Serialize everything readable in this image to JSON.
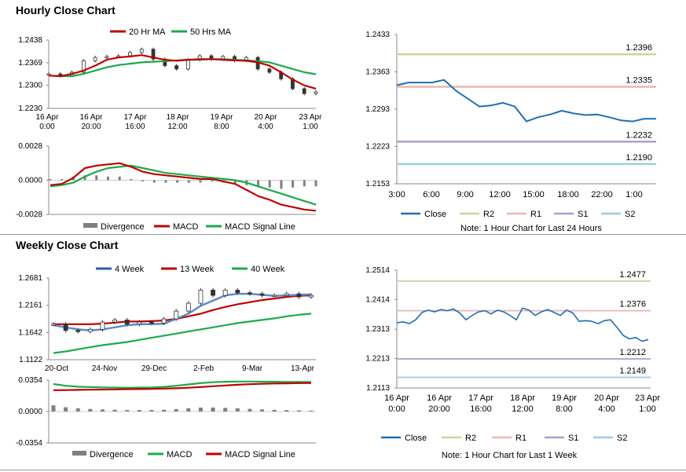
{
  "sections": {
    "hourly_title": "Hourly Close Chart",
    "weekly_title": "Weekly Close Chart"
  },
  "colors": {
    "red": "#c00000",
    "green": "#1aab4b",
    "blue": "#2f5ea8",
    "closeBlue": "#1f6fb2",
    "r2": "#c5d79b",
    "r1": "#eab5b5",
    "s1": "#b09dc8",
    "s2": "#9ccde0",
    "gray": "#808080",
    "candle": "#333333"
  },
  "chart_data": [
    {
      "id": "hourly_price",
      "type": "line",
      "legend": [
        {
          "name": "20 Hr MA",
          "color": "red"
        },
        {
          "name": "50 Hrs MA",
          "color": "green"
        }
      ],
      "yticks": [
        "1.2438",
        "1.2369",
        "1.2300",
        "1.2230"
      ],
      "ylim": [
        1.223,
        1.2438
      ],
      "xticks": [
        {
          "l1": "16 Apr",
          "l2": "0:00"
        },
        {
          "l1": "16 Apr",
          "l2": "20:00"
        },
        {
          "l1": "17 Apr",
          "l2": "16:00"
        },
        {
          "l1": "18 Apr",
          "l2": "12:00"
        },
        {
          "l1": "19 Apr",
          "l2": "8:00"
        },
        {
          "l1": "20 Apr",
          "l2": "4:00"
        },
        {
          "l1": "23 Apr",
          "l2": "1:00"
        }
      ],
      "series": [
        {
          "name": "20 Hr MA",
          "values": [
            1.233,
            1.2328,
            1.2335,
            1.2345,
            1.236,
            1.2378,
            1.2385,
            1.2388,
            1.2392,
            1.2385,
            1.2378,
            1.2375,
            1.2378,
            1.238,
            1.238,
            1.2378,
            1.2376,
            1.2375,
            1.237,
            1.236,
            1.234,
            1.2318,
            1.23,
            1.229
          ]
        },
        {
          "name": "50 Hrs MA",
          "values": [
            1.233,
            1.2328,
            1.2328,
            1.2335,
            1.2345,
            1.2355,
            1.2362,
            1.2366,
            1.237,
            1.2372,
            1.2374,
            1.2376,
            1.2378,
            1.2378,
            1.238,
            1.238,
            1.2378,
            1.2376,
            1.2374,
            1.237,
            1.236,
            1.235,
            1.234,
            1.2334
          ]
        },
        {
          "name": "Close",
          "values": [
            1.2335,
            1.233,
            1.234,
            1.2375,
            1.2385,
            1.2388,
            1.239,
            1.24,
            1.241,
            1.238,
            1.236,
            1.235,
            1.2378,
            1.239,
            1.238,
            1.2388,
            1.2376,
            1.2385,
            1.235,
            1.234,
            1.232,
            1.229,
            1.2275,
            1.228
          ]
        }
      ]
    },
    {
      "id": "hourly_macd",
      "type": "line",
      "legend": [
        {
          "name": "Divergence",
          "color": "gray"
        },
        {
          "name": "MACD",
          "color": "red"
        },
        {
          "name": "MACD Signal Line",
          "color": "green"
        }
      ],
      "yticks": [
        "0.0028",
        "0.0000",
        "-0.0028"
      ],
      "ylim": [
        -0.0028,
        0.0028
      ],
      "series": [
        {
          "name": "MACD",
          "values": [
            -0.0004,
            -0.0003,
            0.0002,
            0.001,
            0.0012,
            0.0013,
            0.0014,
            0.0011,
            0.0007,
            0.0005,
            0.0004,
            0.0003,
            0.0002,
            0.0001,
            0.0001,
            -0.0001,
            -0.0003,
            -0.0008,
            -0.0013,
            -0.0016,
            -0.002,
            -0.0022,
            -0.0024,
            -0.0025
          ]
        },
        {
          "name": "MACD Signal Line",
          "values": [
            -0.0005,
            -0.0004,
            -0.0002,
            0.0003,
            0.0007,
            0.001,
            0.0011,
            0.0012,
            0.001,
            0.0008,
            0.0006,
            0.0005,
            0.0004,
            0.0003,
            0.0002,
            0.0001,
            0.0,
            -0.0002,
            -0.0005,
            -0.0008,
            -0.0011,
            -0.0014,
            -0.0017,
            -0.002
          ]
        },
        {
          "name": "Divergence",
          "values": [
            0.0001,
            0.0001,
            0.0003,
            0.0004,
            0.0004,
            0.0003,
            0.0003,
            0.0001,
            -0.0001,
            -0.0002,
            -0.0002,
            -0.0002,
            -0.0002,
            -0.0002,
            -0.0001,
            -0.0002,
            -0.0003,
            -0.0004,
            -0.0005,
            -0.0006,
            -0.0007,
            -0.0006,
            -0.0005,
            -0.0005
          ]
        }
      ]
    },
    {
      "id": "hourly_24h",
      "type": "line",
      "yticks": [
        "1.2433",
        "1.2363",
        "1.2293",
        "1.2223",
        "1.2153"
      ],
      "ylim": [
        1.2153,
        1.2433
      ],
      "xticks": [
        "3:00",
        "6:00",
        "9:00",
        "12:00",
        "15:00",
        "18:00",
        "22:00",
        "1:00"
      ],
      "levels": [
        {
          "name": "R2",
          "value": 1.2396,
          "label": "1.2396",
          "color": "r2"
        },
        {
          "name": "R1",
          "value": 1.2335,
          "label": "1.2335",
          "color": "r1"
        },
        {
          "name": "S1",
          "value": 1.2232,
          "label": "1.2232",
          "color": "s1"
        },
        {
          "name": "S2",
          "value": 1.219,
          "label": "1.2190",
          "color": "s2"
        }
      ],
      "close": [
        1.2338,
        1.2343,
        1.2343,
        1.2343,
        1.2348,
        1.2328,
        1.2313,
        1.2298,
        1.23,
        1.2305,
        1.2298,
        1.227,
        1.2278,
        1.2283,
        1.229,
        1.2285,
        1.2282,
        1.2283,
        1.2278,
        1.2272,
        1.227,
        1.2275,
        1.2275
      ],
      "legend": [
        "Close",
        "R2",
        "R1",
        "S1",
        "S2"
      ],
      "note": "Note: 1 Hour Chart for Last 24 Hours"
    },
    {
      "id": "weekly_price",
      "type": "line",
      "legend": [
        {
          "name": "4 Week",
          "color": "blue"
        },
        {
          "name": "13 Week",
          "color": "red"
        },
        {
          "name": "40 Week",
          "color": "green"
        }
      ],
      "yticks": [
        "1.2681",
        "1.2161",
        "1.1642",
        "1.1122"
      ],
      "ylim": [
        1.1122,
        1.2681
      ],
      "xticks": [
        "20-Oct",
        "24-Nov",
        "29-Dec",
        "2-Feb",
        "9-Mar",
        "13-Apr"
      ],
      "series": [
        {
          "name": "4 Week",
          "values": [
            1.178,
            1.174,
            1.17,
            1.168,
            1.17,
            1.174,
            1.178,
            1.18,
            1.18,
            1.181,
            1.19,
            1.2,
            1.215,
            1.225,
            1.235,
            1.238,
            1.238,
            1.236,
            1.234,
            1.235,
            1.236,
            1.237
          ]
        },
        {
          "name": "13 Week",
          "values": [
            1.18,
            1.18,
            1.18,
            1.18,
            1.181,
            1.183,
            1.185,
            1.185,
            1.186,
            1.187,
            1.19,
            1.195,
            1.2,
            1.207,
            1.213,
            1.218,
            1.222,
            1.226,
            1.229,
            1.232,
            1.234,
            1.235
          ]
        },
        {
          "name": "40 Week",
          "values": [
            1.125,
            1.128,
            1.132,
            1.136,
            1.14,
            1.143,
            1.146,
            1.15,
            1.154,
            1.158,
            1.162,
            1.166,
            1.17,
            1.174,
            1.178,
            1.182,
            1.185,
            1.188,
            1.191,
            1.195,
            1.198,
            1.2
          ]
        },
        {
          "name": "Close",
          "values": [
            1.18,
            1.168,
            1.166,
            1.17,
            1.184,
            1.188,
            1.18,
            1.184,
            1.182,
            1.19,
            1.205,
            1.22,
            1.245,
            1.235,
            1.245,
            1.24,
            1.238,
            1.235,
            1.235,
            1.238,
            1.232,
            1.235
          ]
        }
      ]
    },
    {
      "id": "weekly_macd",
      "type": "line",
      "legend": [
        {
          "name": "Divergence",
          "color": "gray"
        },
        {
          "name": "MACD",
          "color": "green"
        },
        {
          "name": "MACD Signal Line",
          "color": "red"
        }
      ],
      "yticks": [
        "0.0354",
        "0.0000",
        "-0.0354"
      ],
      "ylim": [
        -0.0354,
        0.0354
      ],
      "series": [
        {
          "name": "MACD",
          "values": [
            0.031,
            0.029,
            0.028,
            0.0275,
            0.0272,
            0.027,
            0.0268,
            0.027,
            0.0272,
            0.0278,
            0.029,
            0.0305,
            0.032,
            0.033,
            0.0335,
            0.0338,
            0.0338,
            0.0336,
            0.0335,
            0.0334,
            0.0333,
            0.0332
          ]
        },
        {
          "name": "MACD Signal Line",
          "values": [
            0.024,
            0.0242,
            0.0244,
            0.0246,
            0.0248,
            0.025,
            0.0252,
            0.0253,
            0.0255,
            0.0258,
            0.0262,
            0.0268,
            0.0276,
            0.0285,
            0.0294,
            0.0302,
            0.0308,
            0.0312,
            0.0316,
            0.0318,
            0.032,
            0.0322
          ]
        },
        {
          "name": "Divergence",
          "values": [
            0.007,
            0.0048,
            0.0036,
            0.0029,
            0.0024,
            0.002,
            0.0016,
            0.0017,
            0.0017,
            0.002,
            0.0028,
            0.0037,
            0.0044,
            0.0045,
            0.0041,
            0.0036,
            0.003,
            0.0024,
            0.0019,
            0.0016,
            0.0013,
            0.001
          ]
        }
      ]
    },
    {
      "id": "weekly_1w",
      "type": "line",
      "yticks": [
        "1.2514",
        "1.2414",
        "1.2313",
        "1.2213",
        "1.2113"
      ],
      "ylim": [
        1.2113,
        1.2514
      ],
      "xticks": [
        {
          "l1": "16 Apr",
          "l2": "0:00"
        },
        {
          "l1": "16 Apr",
          "l2": "20:00"
        },
        {
          "l1": "17 Apr",
          "l2": "16:00"
        },
        {
          "l1": "18 Apr",
          "l2": "12:00"
        },
        {
          "l1": "19 Apr",
          "l2": "8:00"
        },
        {
          "l1": "20 Apr",
          "l2": "4:00"
        },
        {
          "l1": "23 Apr",
          "l2": "1:00"
        }
      ],
      "levels": [
        {
          "name": "R2",
          "value": 1.2477,
          "label": "1.2477",
          "color": "r2"
        },
        {
          "name": "R1",
          "value": 1.2376,
          "label": "1.2376",
          "color": "r1"
        },
        {
          "name": "S1",
          "value": 1.2212,
          "label": "1.2212",
          "color": "s1"
        },
        {
          "name": "S2",
          "value": 1.2149,
          "label": "1.2149",
          "color": "s2"
        }
      ],
      "close": [
        1.2335,
        1.2338,
        1.2332,
        1.2345,
        1.237,
        1.2378,
        1.2372,
        1.238,
        1.2376,
        1.2382,
        1.2368,
        1.2345,
        1.236,
        1.2372,
        1.2376,
        1.2365,
        1.2378,
        1.2372,
        1.236,
        1.2345,
        1.2385,
        1.2378,
        1.236,
        1.2372,
        1.238,
        1.237,
        1.236,
        1.2378,
        1.2368,
        1.234,
        1.2342,
        1.234,
        1.2332,
        1.2342,
        1.2345,
        1.232,
        1.2292,
        1.228,
        1.2285,
        1.2272,
        1.2278
      ],
      "legend": [
        "Close",
        "R2",
        "R1",
        "S1",
        "S2"
      ],
      "note": "Note: 1 Hour Chart for Last 1 Week"
    }
  ]
}
